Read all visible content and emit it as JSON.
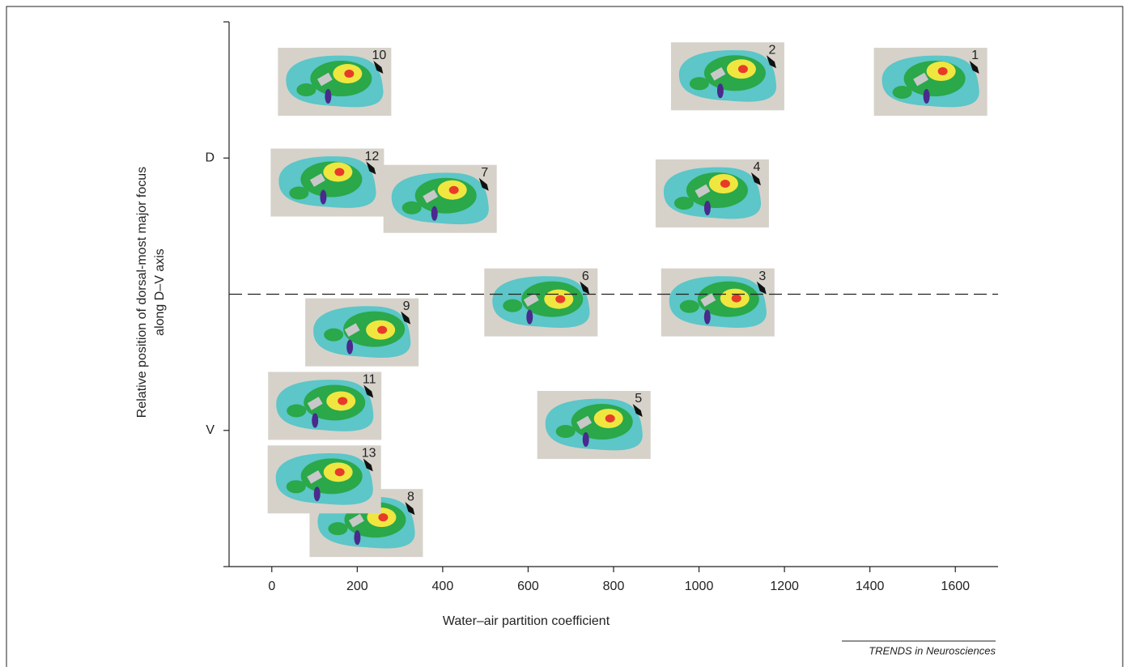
{
  "chart_data": {
    "type": "image-scatter",
    "x_label": "Water–air partition coefficient",
    "y_label": [
      "Relative position of dorsal-most major focus",
      "along D–V axis"
    ],
    "source": "TRENDS in Neurosciences",
    "labels": [
      "1",
      "2",
      "3",
      "4",
      "5",
      "6",
      "7",
      "8",
      "9",
      "10",
      "11",
      "12",
      "13"
    ],
    "x": [
      1542,
      1067,
      1044,
      1031,
      754,
      630,
      394,
      221,
      211,
      147,
      124,
      130,
      123
    ],
    "values": [
      1.28,
      1.3,
      0.47,
      0.87,
      0.02,
      0.47,
      0.85,
      -0.34,
      0.36,
      1.28,
      0.09,
      0.91,
      -0.18
    ],
    "xlim": [
      -100,
      1700
    ],
    "xticks": [
      0,
      200,
      400,
      600,
      800,
      1000,
      1200,
      1400,
      1600
    ],
    "ylim": [
      -0.5,
      1.5
    ],
    "yticks": [
      {
        "value": 0,
        "label": "V"
      },
      {
        "value": 1,
        "label": "D"
      }
    ],
    "hline": 0.5
  }
}
